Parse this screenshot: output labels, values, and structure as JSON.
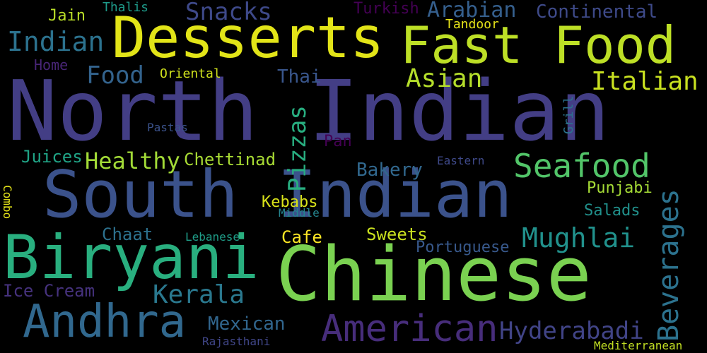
{
  "words": [
    {
      "id": "north-indian",
      "text": "North Indian",
      "color": "#433e85"
    },
    {
      "id": "south-indian",
      "text": "South Indian",
      "color": "#3b528b"
    },
    {
      "id": "chinese",
      "text": "Chinese",
      "color": "#7ad151"
    },
    {
      "id": "biryani",
      "text": "Biryani",
      "color": "#29af7f"
    },
    {
      "id": "desserts",
      "text": "Desserts",
      "color": "#e2e418"
    },
    {
      "id": "fast-food",
      "text": "Fast Food",
      "color": "#bddf26"
    },
    {
      "id": "andhra",
      "text": "Andhra",
      "color": "#31688e"
    },
    {
      "id": "american",
      "text": "American",
      "color": "#472d7b"
    },
    {
      "id": "beverages",
      "text": "Beverages",
      "color": "#2c728e"
    },
    {
      "id": "seafood",
      "text": "Seafood",
      "color": "#52c569"
    },
    {
      "id": "mughlai",
      "text": "Mughlai",
      "color": "#21918c"
    },
    {
      "id": "kerala",
      "text": "Kerala",
      "color": "#2a788e"
    },
    {
      "id": "hyderabadi",
      "text": "Hyderabadi",
      "color": "#414487"
    },
    {
      "id": "pizzas",
      "text": "Pizzas",
      "color": "#28ae80"
    },
    {
      "id": "italian",
      "text": "Italian",
      "color": "#c8e020"
    },
    {
      "id": "asian",
      "text": "Asian",
      "color": "#b5de2b"
    },
    {
      "id": "indian",
      "text": "Indian",
      "color": "#2c728e"
    },
    {
      "id": "food",
      "text": "Food",
      "color": "#33638d"
    },
    {
      "id": "snacks",
      "text": "Snacks",
      "color": "#3e4989"
    },
    {
      "id": "arabian",
      "text": "Arabian",
      "color": "#355f8d"
    },
    {
      "id": "continental",
      "text": "Continental",
      "color": "#3e4a89"
    },
    {
      "id": "healthy",
      "text": "Healthy",
      "color": "#a2da37"
    },
    {
      "id": "chettinad",
      "text": "Chettinad",
      "color": "#a8db34"
    },
    {
      "id": "ice-cream",
      "text": "Ice Cream",
      "color": "#46327e"
    },
    {
      "id": "mexican",
      "text": "Mexican",
      "color": "#31668e"
    },
    {
      "id": "bakery",
      "text": "Bakery",
      "color": "#31688e"
    },
    {
      "id": "thai",
      "text": "Thai",
      "color": "#39568c"
    },
    {
      "id": "juices",
      "text": "Juices",
      "color": "#20a486"
    },
    {
      "id": "kebabs",
      "text": "Kebabs",
      "color": "#d8e219"
    },
    {
      "id": "cafe",
      "text": "Cafe",
      "color": "#fde725"
    },
    {
      "id": "sweets",
      "text": "Sweets",
      "color": "#cae11f"
    },
    {
      "id": "chaat",
      "text": "Chaat",
      "color": "#2d718e"
    },
    {
      "id": "salads",
      "text": "Salads",
      "color": "#21918c"
    },
    {
      "id": "punjabi",
      "text": "Punjabi",
      "color": "#a5db36"
    },
    {
      "id": "portuguese",
      "text": "Portuguese",
      "color": "#38598c"
    },
    {
      "id": "home",
      "text": "Home",
      "color": "#482576"
    },
    {
      "id": "jain",
      "text": "Jain",
      "color": "#bade28"
    },
    {
      "id": "thalis",
      "text": "Thalis",
      "color": "#1e9b8a"
    },
    {
      "id": "turkish",
      "text": "Turkish",
      "color": "#440154"
    },
    {
      "id": "tandoor",
      "text": "Tandoor",
      "color": "#e7e419"
    },
    {
      "id": "oriental",
      "text": "Oriental",
      "color": "#d0e11c"
    },
    {
      "id": "pastas",
      "text": "Pastas",
      "color": "#3b528b"
    },
    {
      "id": "pan",
      "text": "Pan",
      "color": "#440154"
    },
    {
      "id": "eastern",
      "text": "Eastern",
      "color": "#3e4989"
    },
    {
      "id": "grill",
      "text": "Grill",
      "color": "#2c728e"
    },
    {
      "id": "middle",
      "text": "Middle",
      "color": "#25848e"
    },
    {
      "id": "lebanese",
      "text": "Lebanese",
      "color": "#1f9e89"
    },
    {
      "id": "rajasthani",
      "text": "Rajasthani",
      "color": "#404688"
    },
    {
      "id": "mediterranean",
      "text": "Mediterranean",
      "color": "#c2df23"
    },
    {
      "id": "combo",
      "text": "Combo",
      "color": "#e5e419"
    }
  ]
}
